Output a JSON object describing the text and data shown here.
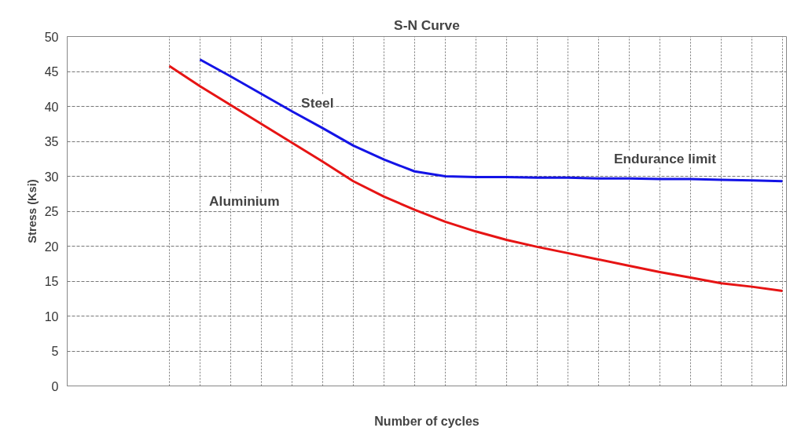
{
  "chart_data": {
    "type": "line",
    "title": "S-N Curve",
    "xlabel": "Number of cycles",
    "ylabel": "Stress (Ksi)",
    "categories": [
      null,
      null,
      null,
      null,
      null,
      null,
      null,
      null,
      null,
      null,
      null,
      null,
      null,
      null,
      null,
      null,
      null,
      null,
      null,
      null,
      null
    ],
    "series": [
      {
        "color": "#1414e6",
        "values": [
          null,
          46.7,
          44.3,
          41.8,
          39.3,
          36.9,
          34.4,
          32.4,
          30.7,
          30.0,
          29.9,
          29.9,
          29.8,
          29.8,
          29.7,
          29.7,
          29.6,
          29.6,
          29.5,
          29.4,
          29.3
        ]
      },
      {
        "color": "#e61414",
        "values": [
          45.8,
          42.9,
          40.2,
          37.5,
          34.8,
          32.1,
          29.3,
          27.1,
          25.2,
          23.5,
          22.1,
          20.9,
          19.9,
          19.0,
          18.1,
          17.2,
          16.3,
          15.5,
          14.7,
          14.2,
          13.6
        ]
      }
    ],
    "annotations": [
      "Steel",
      "Aluminium",
      "Endurance limit"
    ],
    "ylim": [
      0,
      50
    ],
    "yticks": [
      0,
      5,
      10,
      15,
      20,
      25,
      30,
      35,
      40,
      45,
      50
    ],
    "grid": true,
    "line_style": "solid"
  }
}
